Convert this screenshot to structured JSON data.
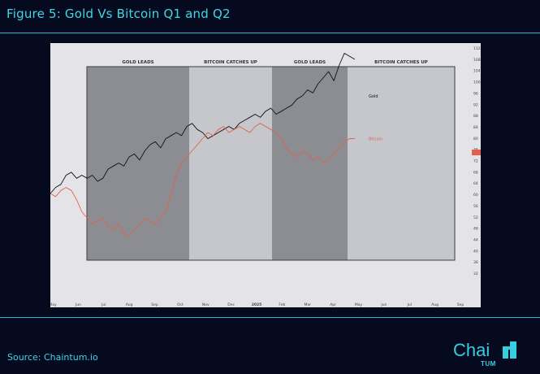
{
  "header": {
    "title": "Figure 5: Gold Vs Bitcoin Q1 and Q2"
  },
  "footer": {
    "source": "Source: Chaintum.io"
  },
  "logo": {
    "name": "Chai",
    "sub": "TUM",
    "mark_icon": "chaintum-logo-mark"
  },
  "colors": {
    "accent": "#3fd8e3",
    "plot_bg": "#e4e4e8",
    "gold_line": "#111111",
    "bitcoin_line": "#e3604a",
    "dark_region": "#8c8d92",
    "light_region": "#c6c7cd"
  },
  "chart_data": {
    "type": "line",
    "regions": [
      {
        "label": "GOLD LEADS",
        "shade": "dark"
      },
      {
        "label": "BITCOIN CATCHES UP",
        "shade": "light"
      },
      {
        "label": "GOLD LEADS",
        "shade": "dark"
      },
      {
        "label": "BITCOIN CATCHES UP",
        "shade": "light"
      }
    ],
    "x_ticks": [
      "May",
      "Jun",
      "Jul",
      "Aug",
      "Sep",
      "Oct",
      "Nov",
      "Dec",
      "2025",
      "Feb",
      "Mar",
      "Apr",
      "May",
      "Jun",
      "Jul",
      "Aug",
      "Sep"
    ],
    "y_ticks": [
      "112",
      "108",
      "104",
      "100",
      "96",
      "92",
      "88",
      "84",
      "80",
      "76",
      "72",
      "68",
      "64",
      "60",
      "56",
      "52",
      "48",
      "44",
      "40",
      "36",
      "32"
    ],
    "ylim": [
      30,
      114
    ],
    "series": [
      {
        "name": "Gold",
        "values": [
          66,
          68,
          69,
          72,
          73,
          71,
          72,
          71,
          72,
          70,
          71,
          74,
          75,
          76,
          75,
          78,
          79,
          77,
          80,
          82,
          83,
          81,
          84,
          85,
          86,
          85,
          88,
          89,
          87,
          86,
          84,
          85,
          86,
          87,
          88,
          87,
          89,
          90,
          91,
          92,
          91,
          93,
          94,
          92,
          93,
          94,
          95,
          97,
          98,
          100,
          99,
          102,
          104,
          106,
          103,
          108,
          112,
          111,
          110
        ]
      },
      {
        "name": "Bitcoin",
        "values": [
          66,
          65,
          67,
          68,
          67,
          64,
          60,
          58,
          56,
          57,
          58,
          55,
          54,
          56,
          53,
          52,
          54,
          56,
          58,
          57,
          56,
          58,
          60,
          66,
          72,
          76,
          78,
          80,
          82,
          84,
          86,
          85,
          87,
          88,
          86,
          87,
          88,
          87,
          86,
          88,
          89,
          88,
          87,
          86,
          84,
          81,
          79,
          78,
          80,
          79,
          77,
          78,
          76,
          77,
          79,
          81,
          83,
          84,
          84
        ]
      }
    ]
  }
}
